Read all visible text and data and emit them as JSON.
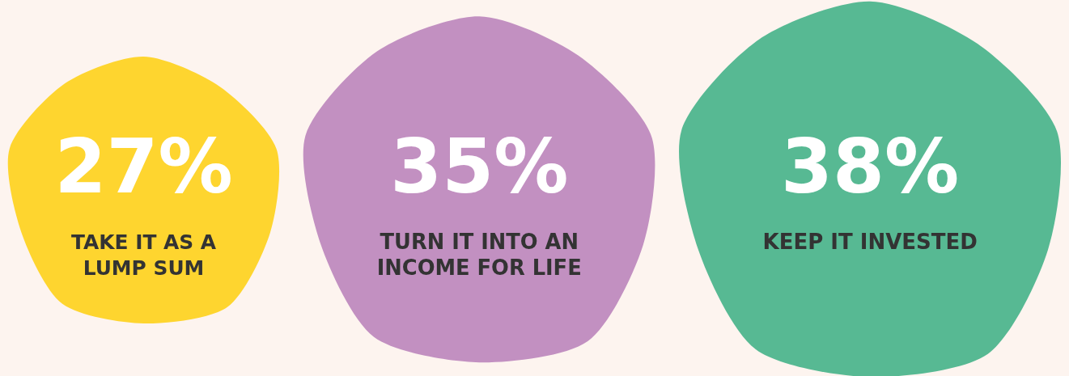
{
  "chart_data": {
    "type": "other",
    "categories": [
      "TAKE IT AS A LUMP SUM",
      "TURN IT INTO AN INCOME FOR LIFE",
      "KEEP IT INVESTED"
    ],
    "values": [
      27,
      35,
      38
    ],
    "value_labels": [
      "27%",
      "35%",
      "38%"
    ],
    "colors": [
      "#fed52f",
      "#c290c1",
      "#57b993"
    ]
  }
}
